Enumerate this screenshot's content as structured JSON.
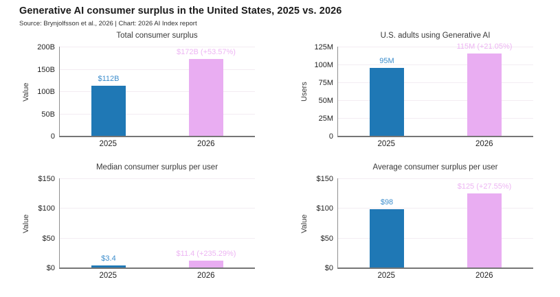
{
  "page": {
    "title": "Generative AI consumer surplus in the United States, 2025 vs. 2026",
    "subtitle": "Source: Brynjolfsson et al., 2026 | Chart: 2026 AI Index report"
  },
  "colors": {
    "bar_2025": "#1f78b5",
    "bar_2026": "#e9adf2",
    "label_2025": "#3c8dcc",
    "label_2026": "#edb5f3",
    "axis": "#8f8f8f",
    "grid": "#f3ecf2"
  },
  "chart_data": [
    {
      "type": "bar",
      "title": "Total consumer surplus",
      "xlabel": "",
      "ylabel": "Value",
      "categories": [
        "2025",
        "2026"
      ],
      "values": [
        112,
        172
      ],
      "bar_labels": [
        "$112B",
        "$172B (+53.57%)"
      ],
      "ylim": [
        0,
        200
      ],
      "yticks": [
        0,
        50,
        100,
        150,
        200
      ],
      "ytick_labels": [
        "0",
        "50B",
        "100B",
        "150B",
        "200B"
      ],
      "grid": true,
      "legend": "none"
    },
    {
      "type": "bar",
      "title": "U.S. adults using Generative AI",
      "xlabel": "",
      "ylabel": "Users",
      "categories": [
        "2025",
        "2026"
      ],
      "values": [
        95,
        115
      ],
      "bar_labels": [
        "95M",
        "115M (+21.05%)"
      ],
      "ylim": [
        0,
        125
      ],
      "yticks": [
        0,
        25,
        50,
        75,
        100,
        125
      ],
      "ytick_labels": [
        "0",
        "25M",
        "50M",
        "75M",
        "100M",
        "125M"
      ],
      "grid": true,
      "legend": "none"
    },
    {
      "type": "bar",
      "title": "Median consumer surplus per user",
      "xlabel": "",
      "ylabel": "Value",
      "categories": [
        "2025",
        "2026"
      ],
      "values": [
        3.4,
        11.4
      ],
      "bar_labels": [
        "$3.4",
        "$11.4 (+235.29%)"
      ],
      "ylim": [
        0,
        150
      ],
      "yticks": [
        0,
        50,
        100,
        150
      ],
      "ytick_labels": [
        "$0",
        "$50",
        "$100",
        "$150"
      ],
      "grid": true,
      "legend": "none"
    },
    {
      "type": "bar",
      "title": "Average consumer surplus per user",
      "xlabel": "",
      "ylabel": "Value",
      "categories": [
        "2025",
        "2026"
      ],
      "values": [
        98,
        125
      ],
      "bar_labels": [
        "$98",
        "$125 (+27.55%)"
      ],
      "ylim": [
        0,
        150
      ],
      "yticks": [
        0,
        50,
        100,
        150
      ],
      "ytick_labels": [
        "$0",
        "$50",
        "$100",
        "$150"
      ],
      "grid": true,
      "legend": "none"
    }
  ]
}
